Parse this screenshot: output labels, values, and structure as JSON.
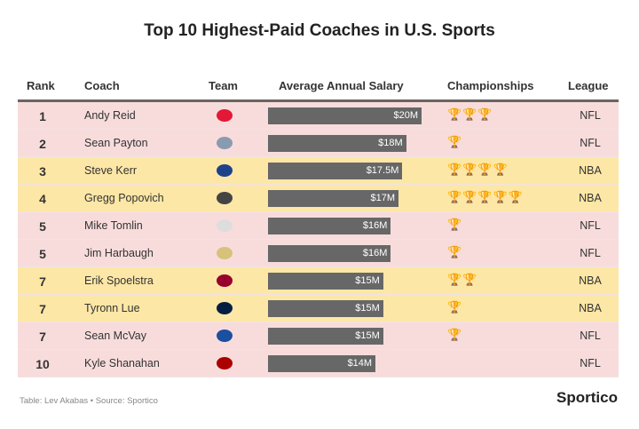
{
  "chart_data": {
    "type": "table",
    "title": "Top 10 Highest-Paid Coaches in U.S. Sports",
    "columns": [
      "Rank",
      "Coach",
      "Team",
      "Average Annual Salary",
      "Championships",
      "League"
    ],
    "rows": [
      {
        "rank": "1",
        "coach": "Andy Reid",
        "team_icon": "chiefs-logo",
        "salary": 20,
        "salary_label": "$20M",
        "championships": 3,
        "league": "NFL"
      },
      {
        "rank": "2",
        "coach": "Sean Payton",
        "team_icon": "broncos-logo",
        "salary": 18,
        "salary_label": "$18M",
        "championships": 1,
        "league": "NFL"
      },
      {
        "rank": "3",
        "coach": "Steve Kerr",
        "team_icon": "warriors-logo",
        "salary": 17.5,
        "salary_label": "$17.5M",
        "championships": 4,
        "league": "NBA"
      },
      {
        "rank": "4",
        "coach": "Gregg Popovich",
        "team_icon": "spurs-logo",
        "salary": 17,
        "salary_label": "$17M",
        "championships": 5,
        "league": "NBA"
      },
      {
        "rank": "5",
        "coach": "Mike Tomlin",
        "team_icon": "steelers-logo",
        "salary": 16,
        "salary_label": "$16M",
        "championships": 1,
        "league": "NFL"
      },
      {
        "rank": "5",
        "coach": "Jim Harbaugh",
        "team_icon": "chargers-logo",
        "salary": 16,
        "salary_label": "$16M",
        "championships": 1,
        "league": "NFL"
      },
      {
        "rank": "7",
        "coach": "Erik Spoelstra",
        "team_icon": "heat-logo",
        "salary": 15,
        "salary_label": "$15M",
        "championships": 2,
        "league": "NBA"
      },
      {
        "rank": "7",
        "coach": "Tyronn Lue",
        "team_icon": "cavaliers-logo",
        "salary": 15,
        "salary_label": "$15M",
        "championships": 1,
        "league": "NBA"
      },
      {
        "rank": "7",
        "coach": "Sean McVay",
        "team_icon": "rams-logo",
        "salary": 15,
        "salary_label": "$15M",
        "championships": 1,
        "league": "NFL"
      },
      {
        "rank": "10",
        "coach": "Kyle Shanahan",
        "team_icon": "49ers-logo",
        "salary": 14,
        "salary_label": "$14M",
        "championships": 0,
        "league": "NFL"
      }
    ],
    "salary_max": 20
  },
  "colors": {
    "NFL": "#f8dcdc",
    "NBA": "#fde7a6",
    "bar": "#676767",
    "trophy": "#d9a21b"
  },
  "team_colors": {
    "chiefs-logo": "#e31837",
    "broncos-logo": "#8a9bb0",
    "warriors-logo": "#1d428a",
    "spurs-logo": "#444",
    "steelers-logo": "#ddd",
    "chargers-logo": "#d6c27a",
    "heat-logo": "#98002e",
    "cavaliers-logo": "#041e42",
    "rams-logo": "#1b4fa0",
    "49ers-logo": "#aa0000"
  },
  "footer": {
    "credit": "Table: Lev Akabas • Source: Sportico",
    "brand": "Sportico"
  }
}
